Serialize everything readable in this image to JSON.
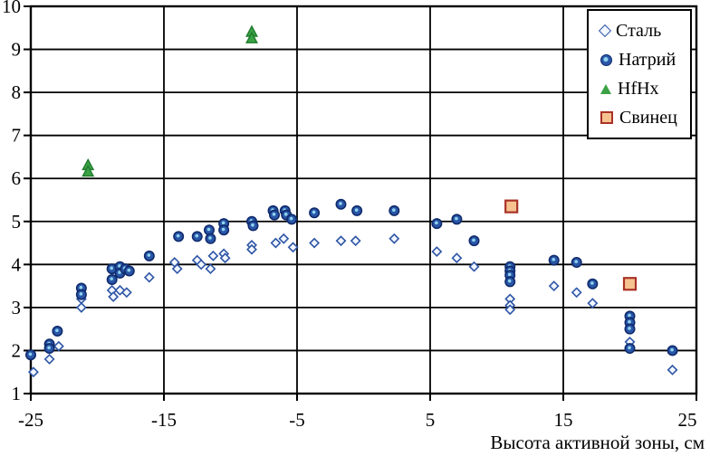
{
  "chart_data": {
    "type": "scatter",
    "title": "",
    "xlabel": "Высота активной зоны, см",
    "ylabel": "",
    "xlim": [
      -25,
      25
    ],
    "ylim": [
      1,
      10
    ],
    "x_ticks": [
      -25,
      -15,
      -5,
      5,
      15,
      25
    ],
    "y_ticks": [
      1,
      2,
      3,
      4,
      5,
      6,
      7,
      8,
      9,
      10
    ],
    "grid": true,
    "legend_position": "top-right-inside",
    "colors": {
      "steel_stroke": "#2e55a5",
      "steel_fill": "#f2f7ff",
      "sodium_fill": "#2a56a8",
      "sodium_stroke": "#0f2a6b",
      "sodium_center": "#8fd4ef",
      "hfhx_fill": "#3aa244",
      "hfhx_stroke": "#1f7a2c",
      "lead_fill": "#f6c390",
      "lead_stroke": "#a93226",
      "grid_color": "#000000"
    },
    "series": [
      {
        "name": "Сталь",
        "marker": "open-diamond",
        "points": [
          [
            -24.8,
            1.5
          ],
          [
            -23.6,
            1.8
          ],
          [
            -22.9,
            2.1
          ],
          [
            -21.2,
            3.2
          ],
          [
            -21.2,
            3.0
          ],
          [
            -18.9,
            3.4
          ],
          [
            -18.8,
            3.25
          ],
          [
            -18.3,
            3.4
          ],
          [
            -17.8,
            3.35
          ],
          [
            -16.1,
            3.7
          ],
          [
            -14.2,
            4.05
          ],
          [
            -14.0,
            3.9
          ],
          [
            -12.5,
            4.1
          ],
          [
            -12.2,
            4.0
          ],
          [
            -11.5,
            3.9
          ],
          [
            -11.3,
            4.2
          ],
          [
            -10.5,
            4.25
          ],
          [
            -10.4,
            4.15
          ],
          [
            -8.4,
            4.45
          ],
          [
            -8.4,
            4.35
          ],
          [
            -6.6,
            4.5
          ],
          [
            -6.0,
            4.6
          ],
          [
            -5.3,
            4.4
          ],
          [
            -3.7,
            4.5
          ],
          [
            -1.7,
            4.55
          ],
          [
            -0.6,
            4.55
          ],
          [
            2.3,
            4.6
          ],
          [
            5.5,
            4.3
          ],
          [
            7.0,
            4.15
          ],
          [
            8.3,
            3.95
          ],
          [
            11,
            3.2
          ],
          [
            11,
            3.05
          ],
          [
            11,
            2.95
          ],
          [
            14.3,
            3.5
          ],
          [
            16,
            3.35
          ],
          [
            17.2,
            3.1
          ],
          [
            20,
            2.2
          ],
          [
            23.2,
            1.55
          ]
        ]
      },
      {
        "name": "Натрий",
        "marker": "filled-circle",
        "points": [
          [
            -25,
            1.9
          ],
          [
            -23.6,
            2.15
          ],
          [
            -23.6,
            2.05
          ],
          [
            -23,
            2.45
          ],
          [
            -21.2,
            3.45
          ],
          [
            -21.2,
            3.3
          ],
          [
            -18.9,
            3.9
          ],
          [
            -18.9,
            3.65
          ],
          [
            -18.3,
            3.95
          ],
          [
            -18.3,
            3.8
          ],
          [
            -17.9,
            3.9
          ],
          [
            -17.6,
            3.85
          ],
          [
            -16.1,
            4.2
          ],
          [
            -13.9,
            4.65
          ],
          [
            -12.5,
            4.65
          ],
          [
            -11.6,
            4.8
          ],
          [
            -11.5,
            4.6
          ],
          [
            -10.5,
            4.95
          ],
          [
            -10.5,
            4.8
          ],
          [
            -8.4,
            5.0
          ],
          [
            -8.3,
            4.9
          ],
          [
            -6.8,
            5.25
          ],
          [
            -6.7,
            5.15
          ],
          [
            -5.9,
            5.25
          ],
          [
            -5.8,
            5.15
          ],
          [
            -5.4,
            5.05
          ],
          [
            -3.7,
            5.2
          ],
          [
            -1.7,
            5.4
          ],
          [
            -0.5,
            5.25
          ],
          [
            2.3,
            5.25
          ],
          [
            5.5,
            4.95
          ],
          [
            7.0,
            5.05
          ],
          [
            8.3,
            4.55
          ],
          [
            11,
            3.95
          ],
          [
            11,
            3.85
          ],
          [
            11,
            3.75
          ],
          [
            11,
            3.6
          ],
          [
            14.3,
            4.1
          ],
          [
            16,
            4.05
          ],
          [
            17.2,
            3.55
          ],
          [
            20,
            2.8
          ],
          [
            20,
            2.65
          ],
          [
            20,
            2.5
          ],
          [
            20,
            2.05
          ],
          [
            23.2,
            2.0
          ]
        ]
      },
      {
        "name": "HfHx",
        "marker": "filled-triangle",
        "points": [
          [
            -20.7,
            6.3
          ],
          [
            -20.7,
            6.15
          ],
          [
            -8.4,
            9.4
          ],
          [
            -8.4,
            9.25
          ]
        ]
      },
      {
        "name": "Свинец",
        "marker": "filled-square",
        "points": [
          [
            11.1,
            5.35
          ],
          [
            20,
            3.55
          ]
        ]
      }
    ]
  }
}
